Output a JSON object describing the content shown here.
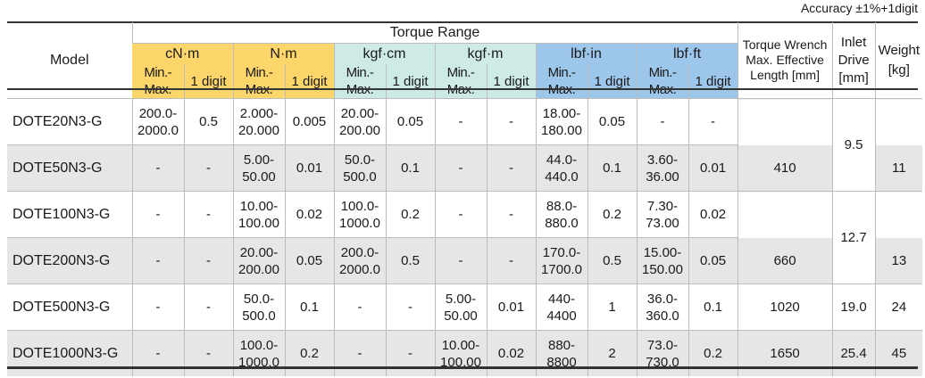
{
  "accuracy_note": "Accuracy ±1%+1digit",
  "header": {
    "model": "Model",
    "torque_range": "Torque Range",
    "units": [
      "cN·m",
      "N·m",
      "kgf·cm",
      "kgf·m",
      "lbf·in",
      "lbf·ft"
    ],
    "minmax": "Min.-Max.",
    "digit": "1 digit",
    "wrench_line1": "Torque Wrench",
    "wrench_line2": "Max. Effective",
    "wrench_line3": "Length [mm]",
    "inlet_line1": "Inlet",
    "inlet_line2": "Drive",
    "inlet_line3": "[mm]",
    "weight_line1": "Weight",
    "weight_line2": "[kg]"
  },
  "rows": [
    {
      "model": "DOTE20N3-G",
      "cells": [
        [
          "200.0-",
          "2000.0"
        ],
        [
          "0.5"
        ],
        [
          "2.000-",
          "20.000"
        ],
        [
          "0.005"
        ],
        [
          "20.00-",
          "200.00"
        ],
        [
          "0.05"
        ],
        [
          "-"
        ],
        [
          "-"
        ],
        [
          "18.00-",
          "180.00"
        ],
        [
          "0.05"
        ],
        [
          "-"
        ],
        [
          "-"
        ]
      ]
    },
    {
      "model": "DOTE50N3-G",
      "cells": [
        [
          "-"
        ],
        [
          "-"
        ],
        [
          "5.00-",
          "50.00"
        ],
        [
          "0.01"
        ],
        [
          "50.0-",
          "500.0"
        ],
        [
          "0.1"
        ],
        [
          "-"
        ],
        [
          "-"
        ],
        [
          "44.0-",
          "440.0"
        ],
        [
          "0.1"
        ],
        [
          "3.60-",
          "36.00"
        ],
        [
          "0.01"
        ]
      ]
    },
    {
      "model": "DOTE100N3-G",
      "cells": [
        [
          "-"
        ],
        [
          "-"
        ],
        [
          "10.00-",
          "100.00"
        ],
        [
          "0.02"
        ],
        [
          "100.0-",
          "1000.0"
        ],
        [
          "0.2"
        ],
        [
          "-"
        ],
        [
          "-"
        ],
        [
          "88.0-",
          "880.0"
        ],
        [
          "0.2"
        ],
        [
          "7.30-",
          "73.00"
        ],
        [
          "0.02"
        ]
      ]
    },
    {
      "model": "DOTE200N3-G",
      "cells": [
        [
          "-"
        ],
        [
          "-"
        ],
        [
          "20.00-",
          "200.00"
        ],
        [
          "0.05"
        ],
        [
          "200.0-",
          "2000.0"
        ],
        [
          "0.5"
        ],
        [
          "-"
        ],
        [
          "-"
        ],
        [
          "170.0-",
          "1700.0"
        ],
        [
          "0.5"
        ],
        [
          "15.00-",
          "150.00"
        ],
        [
          "0.05"
        ]
      ]
    },
    {
      "model": "DOTE500N3-G",
      "cells": [
        [
          "-"
        ],
        [
          "-"
        ],
        [
          "50.0-",
          "500.0"
        ],
        [
          "0.1"
        ],
        [
          "-"
        ],
        [
          "-"
        ],
        [
          "5.00-",
          "50.00"
        ],
        [
          "0.01"
        ],
        [
          "440-",
          "4400"
        ],
        [
          "1"
        ],
        [
          "36.0-",
          "360.0"
        ],
        [
          "0.1"
        ]
      ]
    },
    {
      "model": "DOTE1000N3-G",
      "cells": [
        [
          "-"
        ],
        [
          "-"
        ],
        [
          "100.0-",
          "1000.0"
        ],
        [
          "0.2"
        ],
        [
          "-"
        ],
        [
          "-"
        ],
        [
          "10.00-",
          "100.00"
        ],
        [
          "0.02"
        ],
        [
          "880-",
          "8800"
        ],
        [
          "2"
        ],
        [
          "73.0-",
          "730.0"
        ],
        [
          "0.2"
        ]
      ]
    }
  ],
  "wrench": [
    "410",
    "660",
    "1020",
    "1650"
  ],
  "inlet": [
    "9.5",
    "12.7",
    "19.0",
    "25.4"
  ],
  "weight": [
    "11",
    "13",
    "24",
    "45"
  ]
}
